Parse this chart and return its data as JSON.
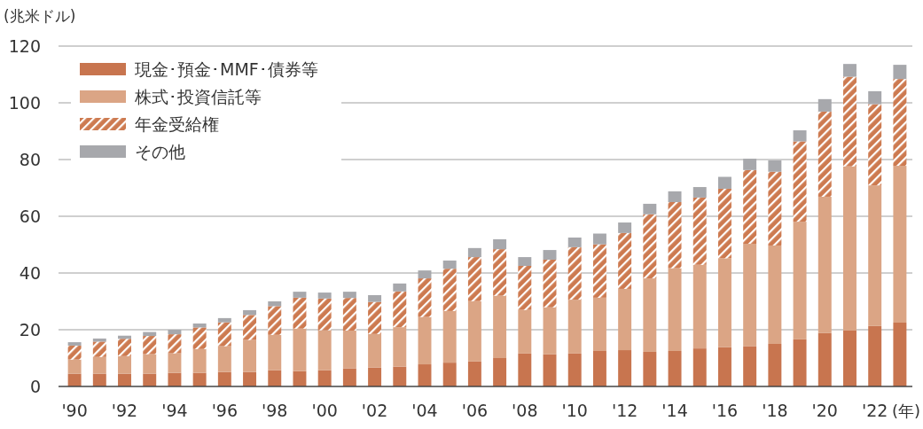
{
  "chart_data": {
    "type": "bar",
    "stacked": true,
    "ylabel": "(兆米ドル)",
    "xlabel": "(年)",
    "categories": [
      "'90",
      null,
      "'92",
      null,
      "'94",
      null,
      "'96",
      null,
      "'98",
      null,
      "'00",
      null,
      "'02",
      null,
      "'04",
      null,
      "'06",
      null,
      "'08",
      null,
      "'10",
      null,
      "'12",
      null,
      "'14",
      null,
      "'16",
      null,
      "'18",
      null,
      "'20",
      null,
      "'22",
      null
    ],
    "series": [
      {
        "name": "現金･預金･MMF･債券等",
        "color": "#c8754f",
        "values": [
          4.5,
          4.5,
          4.5,
          4.5,
          4.8,
          4.8,
          5.1,
          5.1,
          5.7,
          5.4,
          5.7,
          6.4,
          6.7,
          7.0,
          7.8,
          8.4,
          8.8,
          10.0,
          11.6,
          11.3,
          11.6,
          12.5,
          12.8,
          12.2,
          12.5,
          13.4,
          13.8,
          14.1,
          15.0,
          16.6,
          18.8,
          19.7,
          21.3,
          22.5
        ]
      },
      {
        "name": "株式･投資信託等",
        "color": "#dba585",
        "values": [
          5.0,
          5.9,
          6.2,
          6.9,
          6.9,
          8.4,
          9.1,
          11.3,
          12.5,
          15.0,
          14.1,
          13.3,
          11.8,
          13.9,
          16.7,
          18.2,
          21.3,
          22.0,
          15.4,
          16.6,
          19.0,
          18.8,
          21.6,
          25.9,
          29.2,
          29.5,
          31.4,
          36.2,
          34.7,
          41.5,
          48.1,
          57.9,
          49.6,
          55.3
        ]
      },
      {
        "name": "年金受給権",
        "color": "#cd7a50",
        "values": [
          4.9,
          5.4,
          6.1,
          6.4,
          6.7,
          7.6,
          8.4,
          8.8,
          10.1,
          10.9,
          11.2,
          11.5,
          11.3,
          12.6,
          13.6,
          14.9,
          15.5,
          16.4,
          15.5,
          16.8,
          18.5,
          18.8,
          19.7,
          22.6,
          23.3,
          23.7,
          24.5,
          26.0,
          26.0,
          28.3,
          30.0,
          31.6,
          28.6,
          30.6
        ]
      },
      {
        "name": "その他",
        "color": "#a7a8ac",
        "values": [
          1.2,
          1.1,
          1.1,
          1.4,
          1.6,
          1.4,
          1.5,
          1.7,
          1.7,
          2.1,
          2.1,
          2.2,
          2.4,
          2.8,
          2.8,
          2.9,
          3.2,
          3.5,
          3.1,
          3.4,
          3.4,
          3.8,
          3.7,
          3.7,
          3.8,
          3.7,
          4.2,
          4.0,
          4.0,
          3.9,
          4.4,
          4.5,
          4.6,
          5.0
        ]
      }
    ],
    "ylim": [
      0,
      120
    ],
    "yticks": [
      0,
      20,
      40,
      60,
      80,
      100,
      120
    ],
    "grid": "y",
    "legend": "top left"
  }
}
